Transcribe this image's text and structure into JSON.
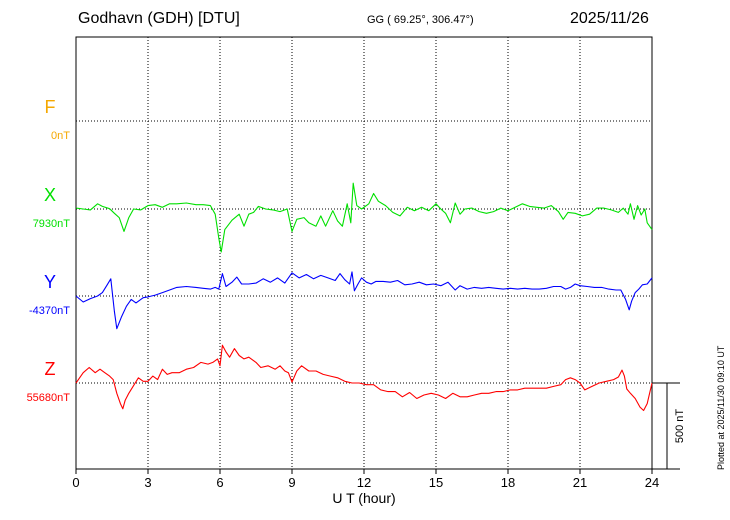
{
  "header": {
    "station": "Godhavn (GDH)  [DTU]",
    "coords": "GG ( 69.25°, 306.47°)",
    "date": "2025/11/26"
  },
  "footer": {
    "plotted": "Plotted at 2025/11/30 09:10 UT"
  },
  "chart_data": {
    "type": "line",
    "title": "Godhavn (GDH)  [DTU]",
    "xlabel": "U T (hour)",
    "x_ticks": [
      0,
      3,
      6,
      9,
      12,
      15,
      18,
      21,
      24
    ],
    "xlim": [
      0,
      24
    ],
    "grid": true,
    "scale_bar": {
      "label": "500 nT",
      "value_nT": 500
    },
    "series": [
      {
        "name": "F",
        "baseline_label": "0nT",
        "color": "#f5a800",
        "points": []
      },
      {
        "name": "X",
        "baseline_label": "7930nT",
        "color": "#00e000",
        "points": [
          [
            0,
            7935
          ],
          [
            0.3,
            7930
          ],
          [
            0.6,
            7925
          ],
          [
            0.9,
            7960
          ],
          [
            1.1,
            7945
          ],
          [
            1.4,
            7932
          ],
          [
            1.6,
            7905
          ],
          [
            1.8,
            7880
          ],
          [
            2.0,
            7800
          ],
          [
            2.2,
            7880
          ],
          [
            2.4,
            7930
          ],
          [
            2.7,
            7925
          ],
          [
            3.0,
            7950
          ],
          [
            3.3,
            7955
          ],
          [
            3.6,
            7940
          ],
          [
            3.9,
            7960
          ],
          [
            4.2,
            7960
          ],
          [
            4.6,
            7965
          ],
          [
            5.0,
            7955
          ],
          [
            5.3,
            7955
          ],
          [
            5.6,
            7950
          ],
          [
            5.8,
            7900
          ],
          [
            5.95,
            7760
          ],
          [
            6.05,
            7680
          ],
          [
            6.2,
            7810
          ],
          [
            6.5,
            7865
          ],
          [
            6.8,
            7900
          ],
          [
            7.0,
            7830
          ],
          [
            7.2,
            7900
          ],
          [
            7.4,
            7910
          ],
          [
            7.6,
            7945
          ],
          [
            7.9,
            7930
          ],
          [
            8.2,
            7925
          ],
          [
            8.5,
            7915
          ],
          [
            8.8,
            7930
          ],
          [
            9.0,
            7800
          ],
          [
            9.2,
            7870
          ],
          [
            9.5,
            7880
          ],
          [
            9.7,
            7850
          ],
          [
            10.0,
            7830
          ],
          [
            10.2,
            7890
          ],
          [
            10.4,
            7830
          ],
          [
            10.7,
            7920
          ],
          [
            10.9,
            7860
          ],
          [
            11.1,
            7830
          ],
          [
            11.3,
            7960
          ],
          [
            11.45,
            7850
          ],
          [
            11.55,
            8080
          ],
          [
            11.7,
            7950
          ],
          [
            11.9,
            7930
          ],
          [
            12.2,
            7960
          ],
          [
            12.4,
            8020
          ],
          [
            12.6,
            7975
          ],
          [
            12.9,
            7950
          ],
          [
            13.2,
            7910
          ],
          [
            13.5,
            7890
          ],
          [
            13.8,
            7940
          ],
          [
            14.1,
            7920
          ],
          [
            14.4,
            7940
          ],
          [
            14.7,
            7920
          ],
          [
            15.0,
            7960
          ],
          [
            15.2,
            7930
          ],
          [
            15.4,
            7905
          ],
          [
            15.6,
            7850
          ],
          [
            15.8,
            7965
          ],
          [
            16.0,
            7900
          ],
          [
            16.2,
            7930
          ],
          [
            16.5,
            7935
          ],
          [
            16.8,
            7915
          ],
          [
            17.1,
            7905
          ],
          [
            17.4,
            7915
          ],
          [
            17.7,
            7935
          ],
          [
            18.0,
            7920
          ],
          [
            18.3,
            7940
          ],
          [
            18.6,
            7960
          ],
          [
            18.9,
            7945
          ],
          [
            19.2,
            7940
          ],
          [
            19.5,
            7935
          ],
          [
            19.8,
            7950
          ],
          [
            20.1,
            7915
          ],
          [
            20.3,
            7870
          ],
          [
            20.5,
            7910
          ],
          [
            20.8,
            7905
          ],
          [
            21.1,
            7890
          ],
          [
            21.4,
            7900
          ],
          [
            21.7,
            7935
          ],
          [
            22.0,
            7935
          ],
          [
            22.3,
            7925
          ],
          [
            22.6,
            7910
          ],
          [
            22.8,
            7935
          ],
          [
            23.0,
            7900
          ],
          [
            23.1,
            7960
          ],
          [
            23.25,
            7870
          ],
          [
            23.4,
            7950
          ],
          [
            23.55,
            7895
          ],
          [
            23.7,
            7930
          ],
          [
            23.8,
            7850
          ],
          [
            24.0,
            7810
          ]
        ]
      },
      {
        "name": "Y",
        "baseline_label": "-4370nT",
        "color": "#0000ff",
        "points": [
          [
            0,
            -4370
          ],
          [
            0.3,
            -4405
          ],
          [
            0.6,
            -4385
          ],
          [
            0.9,
            -4370
          ],
          [
            1.1,
            -4350
          ],
          [
            1.3,
            -4305
          ],
          [
            1.45,
            -4270
          ],
          [
            1.6,
            -4460
          ],
          [
            1.7,
            -4560
          ],
          [
            1.9,
            -4490
          ],
          [
            2.1,
            -4430
          ],
          [
            2.3,
            -4390
          ],
          [
            2.5,
            -4410
          ],
          [
            2.8,
            -4380
          ],
          [
            3.0,
            -4375
          ],
          [
            3.3,
            -4365
          ],
          [
            3.6,
            -4350
          ],
          [
            3.9,
            -4335
          ],
          [
            4.2,
            -4320
          ],
          [
            4.6,
            -4315
          ],
          [
            5.0,
            -4320
          ],
          [
            5.3,
            -4325
          ],
          [
            5.6,
            -4330
          ],
          [
            5.8,
            -4320
          ],
          [
            5.95,
            -4330
          ],
          [
            6.1,
            -4240
          ],
          [
            6.25,
            -4315
          ],
          [
            6.5,
            -4290
          ],
          [
            6.7,
            -4260
          ],
          [
            6.9,
            -4300
          ],
          [
            7.2,
            -4300
          ],
          [
            7.5,
            -4295
          ],
          [
            7.8,
            -4270
          ],
          [
            8.1,
            -4290
          ],
          [
            8.4,
            -4265
          ],
          [
            8.7,
            -4295
          ],
          [
            9.0,
            -4235
          ],
          [
            9.3,
            -4265
          ],
          [
            9.6,
            -4245
          ],
          [
            9.9,
            -4270
          ],
          [
            10.2,
            -4250
          ],
          [
            10.5,
            -4265
          ],
          [
            10.8,
            -4280
          ],
          [
            11.0,
            -4240
          ],
          [
            11.2,
            -4275
          ],
          [
            11.4,
            -4300
          ],
          [
            11.5,
            -4230
          ],
          [
            11.6,
            -4340
          ],
          [
            11.75,
            -4300
          ],
          [
            11.9,
            -4265
          ],
          [
            12.1,
            -4290
          ],
          [
            12.3,
            -4300
          ],
          [
            12.5,
            -4285
          ],
          [
            12.8,
            -4285
          ],
          [
            13.1,
            -4290
          ],
          [
            13.4,
            -4280
          ],
          [
            13.7,
            -4305
          ],
          [
            14.0,
            -4300
          ],
          [
            14.3,
            -4290
          ],
          [
            14.6,
            -4305
          ],
          [
            14.9,
            -4300
          ],
          [
            15.2,
            -4310
          ],
          [
            15.5,
            -4290
          ],
          [
            15.8,
            -4335
          ],
          [
            16.0,
            -4310
          ],
          [
            16.3,
            -4330
          ],
          [
            16.6,
            -4320
          ],
          [
            16.9,
            -4325
          ],
          [
            17.2,
            -4320
          ],
          [
            17.5,
            -4325
          ],
          [
            17.8,
            -4330
          ],
          [
            18.1,
            -4325
          ],
          [
            18.4,
            -4330
          ],
          [
            18.7,
            -4325
          ],
          [
            19.0,
            -4330
          ],
          [
            19.3,
            -4330
          ],
          [
            19.6,
            -4325
          ],
          [
            19.9,
            -4315
          ],
          [
            20.2,
            -4315
          ],
          [
            20.4,
            -4330
          ],
          [
            20.6,
            -4320
          ],
          [
            20.8,
            -4300
          ],
          [
            21.0,
            -4310
          ],
          [
            21.3,
            -4315
          ],
          [
            21.6,
            -4320
          ],
          [
            21.9,
            -4320
          ],
          [
            22.2,
            -4330
          ],
          [
            22.5,
            -4335
          ],
          [
            22.7,
            -4335
          ],
          [
            22.9,
            -4390
          ],
          [
            23.05,
            -4450
          ],
          [
            23.15,
            -4400
          ],
          [
            23.3,
            -4350
          ],
          [
            23.45,
            -4330
          ],
          [
            23.6,
            -4305
          ],
          [
            23.8,
            -4300
          ],
          [
            24.0,
            -4265
          ]
        ]
      },
      {
        "name": "Z",
        "baseline_label": "55680nT",
        "color": "#ff0000",
        "points": [
          [
            0,
            55680
          ],
          [
            0.3,
            55740
          ],
          [
            0.55,
            55770
          ],
          [
            0.8,
            55740
          ],
          [
            1.0,
            55760
          ],
          [
            1.2,
            55740
          ],
          [
            1.4,
            55720
          ],
          [
            1.55,
            55700
          ],
          [
            1.7,
            55620
          ],
          [
            1.85,
            55560
          ],
          [
            1.95,
            55530
          ],
          [
            2.05,
            55580
          ],
          [
            2.2,
            55620
          ],
          [
            2.4,
            55665
          ],
          [
            2.6,
            55710
          ],
          [
            2.8,
            55690
          ],
          [
            3.0,
            55690
          ],
          [
            3.2,
            55720
          ],
          [
            3.4,
            55700
          ],
          [
            3.6,
            55760
          ],
          [
            3.8,
            55730
          ],
          [
            4.0,
            55740
          ],
          [
            4.3,
            55740
          ],
          [
            4.6,
            55760
          ],
          [
            4.9,
            55770
          ],
          [
            5.2,
            55800
          ],
          [
            5.5,
            55790
          ],
          [
            5.7,
            55800
          ],
          [
            5.9,
            55820
          ],
          [
            6.0,
            55780
          ],
          [
            6.1,
            55900
          ],
          [
            6.25,
            55860
          ],
          [
            6.4,
            55830
          ],
          [
            6.6,
            55880
          ],
          [
            6.8,
            55840
          ],
          [
            7.0,
            55820
          ],
          [
            7.2,
            55830
          ],
          [
            7.5,
            55800
          ],
          [
            7.7,
            55770
          ],
          [
            8.0,
            55780
          ],
          [
            8.3,
            55760
          ],
          [
            8.5,
            55780
          ],
          [
            8.7,
            55750
          ],
          [
            8.85,
            55740
          ],
          [
            9.0,
            55685
          ],
          [
            9.2,
            55750
          ],
          [
            9.4,
            55780
          ],
          [
            9.7,
            55750
          ],
          [
            10.0,
            55750
          ],
          [
            10.3,
            55730
          ],
          [
            10.6,
            55720
          ],
          [
            10.9,
            55710
          ],
          [
            11.2,
            55690
          ],
          [
            11.5,
            55680
          ],
          [
            11.8,
            55680
          ],
          [
            12.1,
            55670
          ],
          [
            12.4,
            55670
          ],
          [
            12.7,
            55640
          ],
          [
            13.0,
            55630
          ],
          [
            13.3,
            55630
          ],
          [
            13.6,
            55600
          ],
          [
            13.9,
            55625
          ],
          [
            14.2,
            55590
          ],
          [
            14.5,
            55610
          ],
          [
            14.8,
            55620
          ],
          [
            15.1,
            55610
          ],
          [
            15.4,
            55590
          ],
          [
            15.7,
            55620
          ],
          [
            16.0,
            55600
          ],
          [
            16.3,
            55600
          ],
          [
            16.6,
            55610
          ],
          [
            16.9,
            55620
          ],
          [
            17.2,
            55620
          ],
          [
            17.5,
            55630
          ],
          [
            17.8,
            55630
          ],
          [
            18.1,
            55640
          ],
          [
            18.4,
            55640
          ],
          [
            18.7,
            55650
          ],
          [
            19.0,
            55650
          ],
          [
            19.3,
            55650
          ],
          [
            19.6,
            55650
          ],
          [
            19.9,
            55660
          ],
          [
            20.2,
            55670
          ],
          [
            20.4,
            55700
          ],
          [
            20.6,
            55710
          ],
          [
            20.8,
            55700
          ],
          [
            21.0,
            55680
          ],
          [
            21.2,
            55640
          ],
          [
            21.5,
            55660
          ],
          [
            21.8,
            55680
          ],
          [
            22.1,
            55690
          ],
          [
            22.4,
            55700
          ],
          [
            22.6,
            55715
          ],
          [
            22.75,
            55755
          ],
          [
            22.85,
            55720
          ],
          [
            22.95,
            55645
          ],
          [
            23.1,
            55620
          ],
          [
            23.3,
            55590
          ],
          [
            23.5,
            55540
          ],
          [
            23.65,
            55520
          ],
          [
            23.8,
            55560
          ],
          [
            24.0,
            55680
          ]
        ]
      }
    ]
  }
}
